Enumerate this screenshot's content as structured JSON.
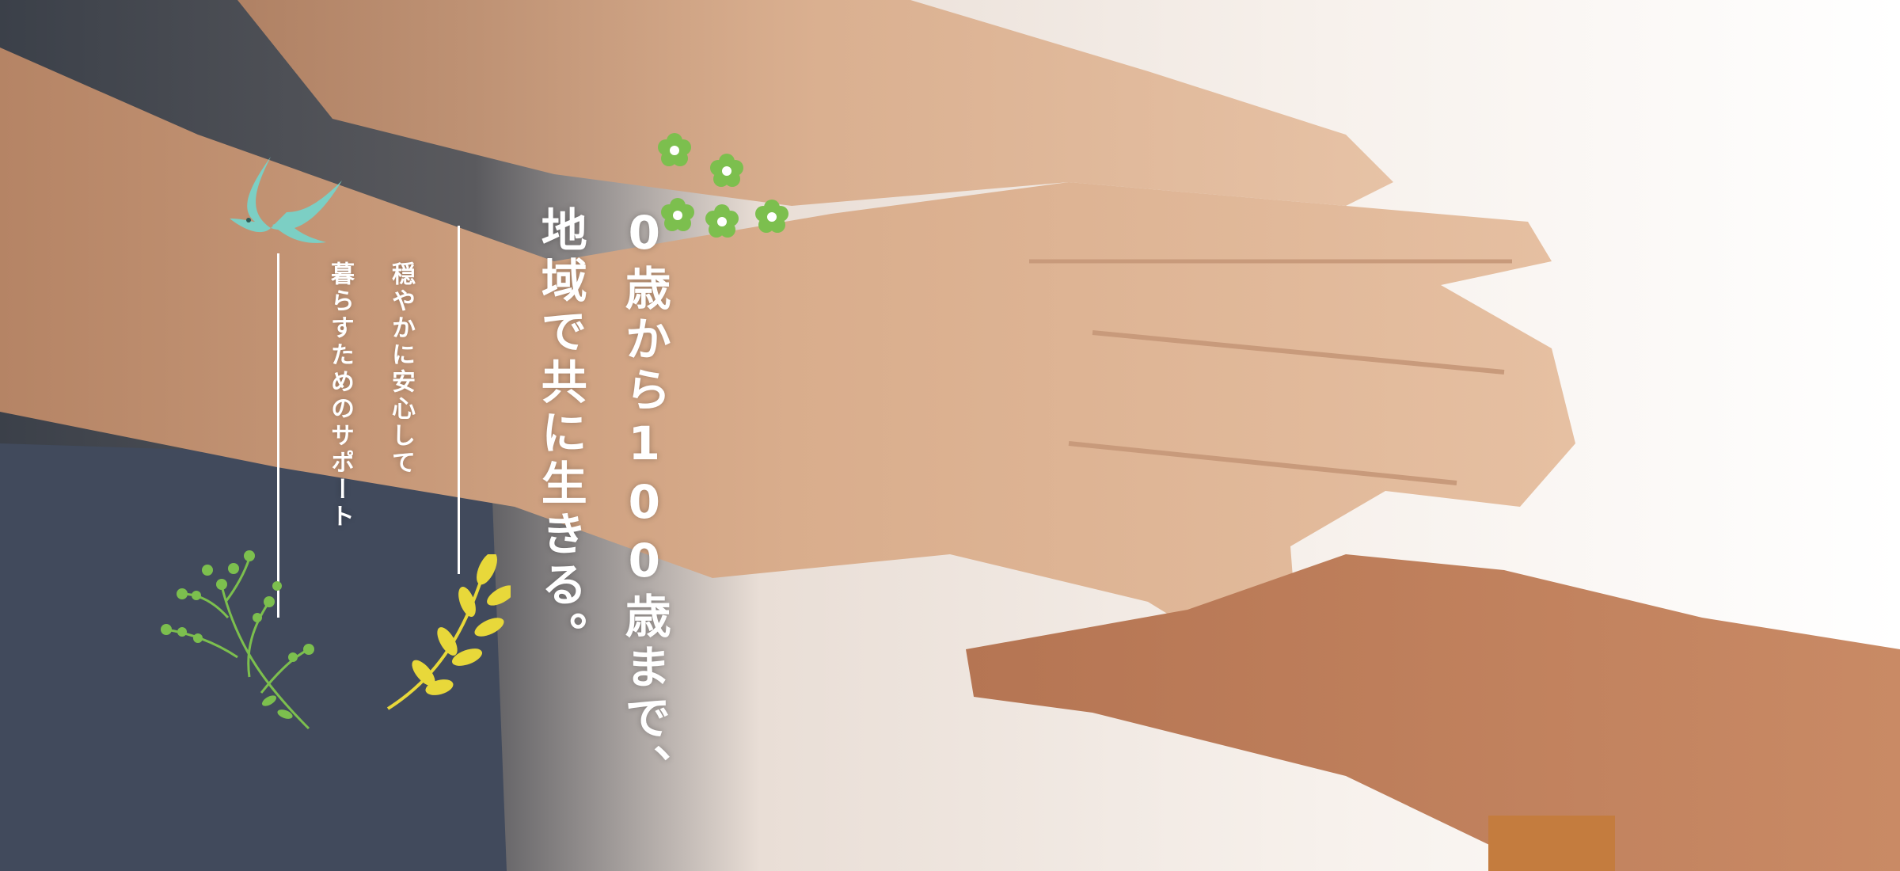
{
  "hero": {
    "headline_line1": "0歳から100歳まで、",
    "headline_line2": "地域で共に生きる。",
    "sub_line1": "穏やかに安心して",
    "sub_line2": "暮らすためのサポート"
  },
  "colors": {
    "bird": "#7ccfc4",
    "flower_green": "#7cbf4e",
    "sprig_green": "#7cbf4e",
    "leaf_yellow": "#e8d83a",
    "text": "#ffffff"
  },
  "icons": [
    "bird-icon",
    "flowers-icon",
    "green-sprig-icon",
    "yellow-leaf-icon"
  ]
}
